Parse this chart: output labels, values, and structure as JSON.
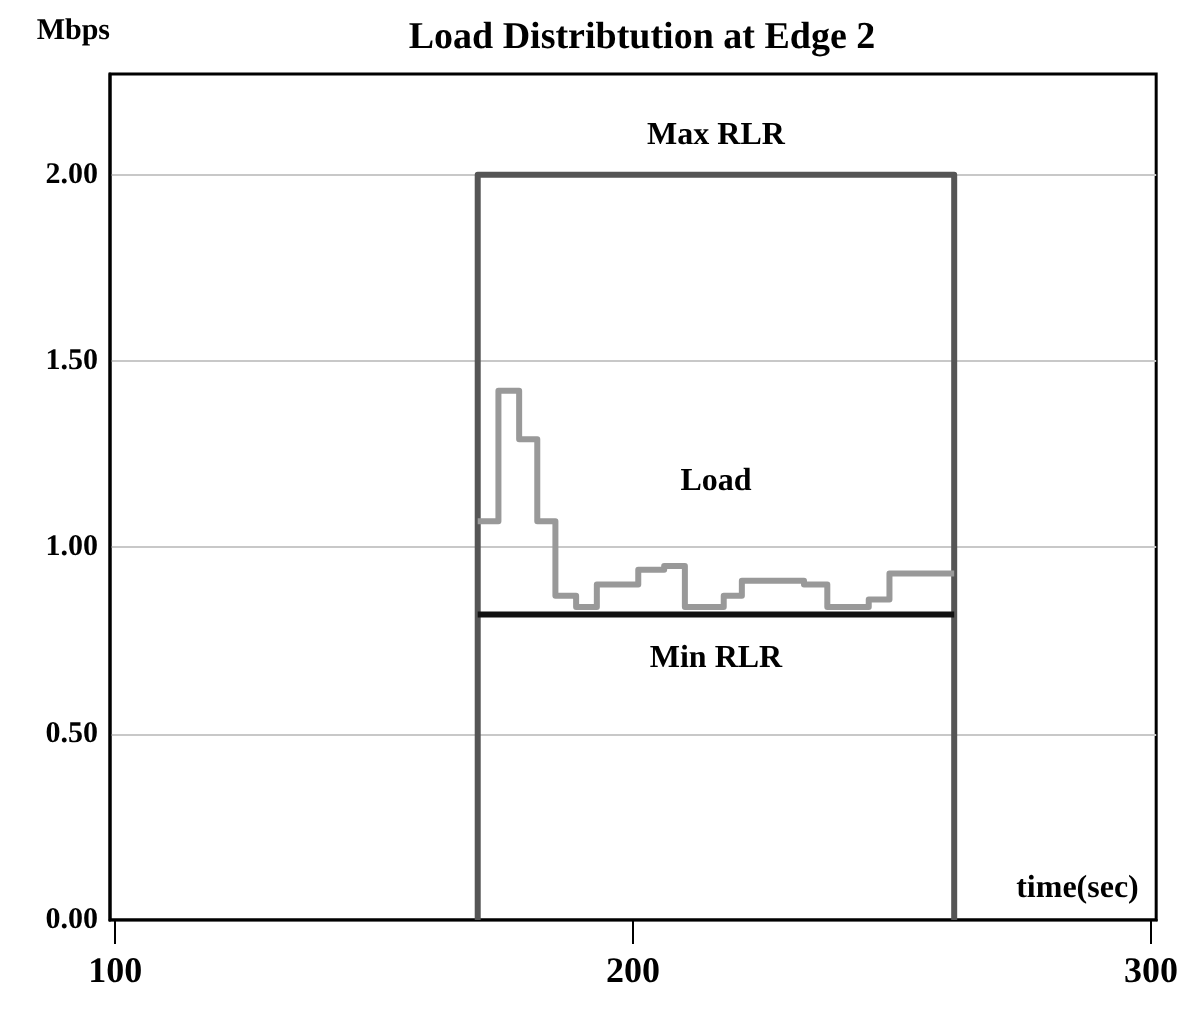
{
  "chart_data": {
    "type": "step",
    "title": "Load Distribtution at Edge 2",
    "xlabel": "time(sec)",
    "ylabel": "Mbps",
    "xlim": [
      99,
      301
    ],
    "xticks": [
      100,
      200,
      300
    ],
    "ylim": [
      0,
      2.27
    ],
    "yticks": [
      {
        "value": 0,
        "label": "0.00"
      },
      {
        "value": 0.5,
        "label": "0.50"
      },
      {
        "value": 1,
        "label": "1.00"
      },
      {
        "value": 1.5,
        "label": "1.50"
      },
      {
        "value": 2,
        "label": "2.00"
      }
    ],
    "grid": "y",
    "legend": false,
    "marker": "none",
    "series": [
      {
        "name": "Max RLR",
        "type": "line",
        "color": "#555555",
        "x": [
          170,
          170,
          262,
          262
        ],
        "values": [
          0,
          2,
          2,
          0
        ]
      },
      {
        "name": "Load",
        "color": "#999999",
        "x": [
          170,
          174,
          178,
          181.5,
          185,
          189,
          193,
          201,
          206,
          210,
          217.5,
          221,
          233,
          237.5,
          245.5,
          249.5,
          262
        ],
        "values": [
          1.07,
          1.42,
          1.29,
          1.07,
          0.87,
          0.84,
          0.9,
          0.94,
          0.95,
          0.84,
          0.87,
          0.91,
          0.9,
          0.84,
          0.86,
          0.93,
          0.93
        ]
      },
      {
        "name": "Min RLR",
        "type": "line",
        "color": "#111111",
        "x": [
          170,
          262
        ],
        "values": [
          0.82,
          0.82
        ]
      }
    ]
  }
}
